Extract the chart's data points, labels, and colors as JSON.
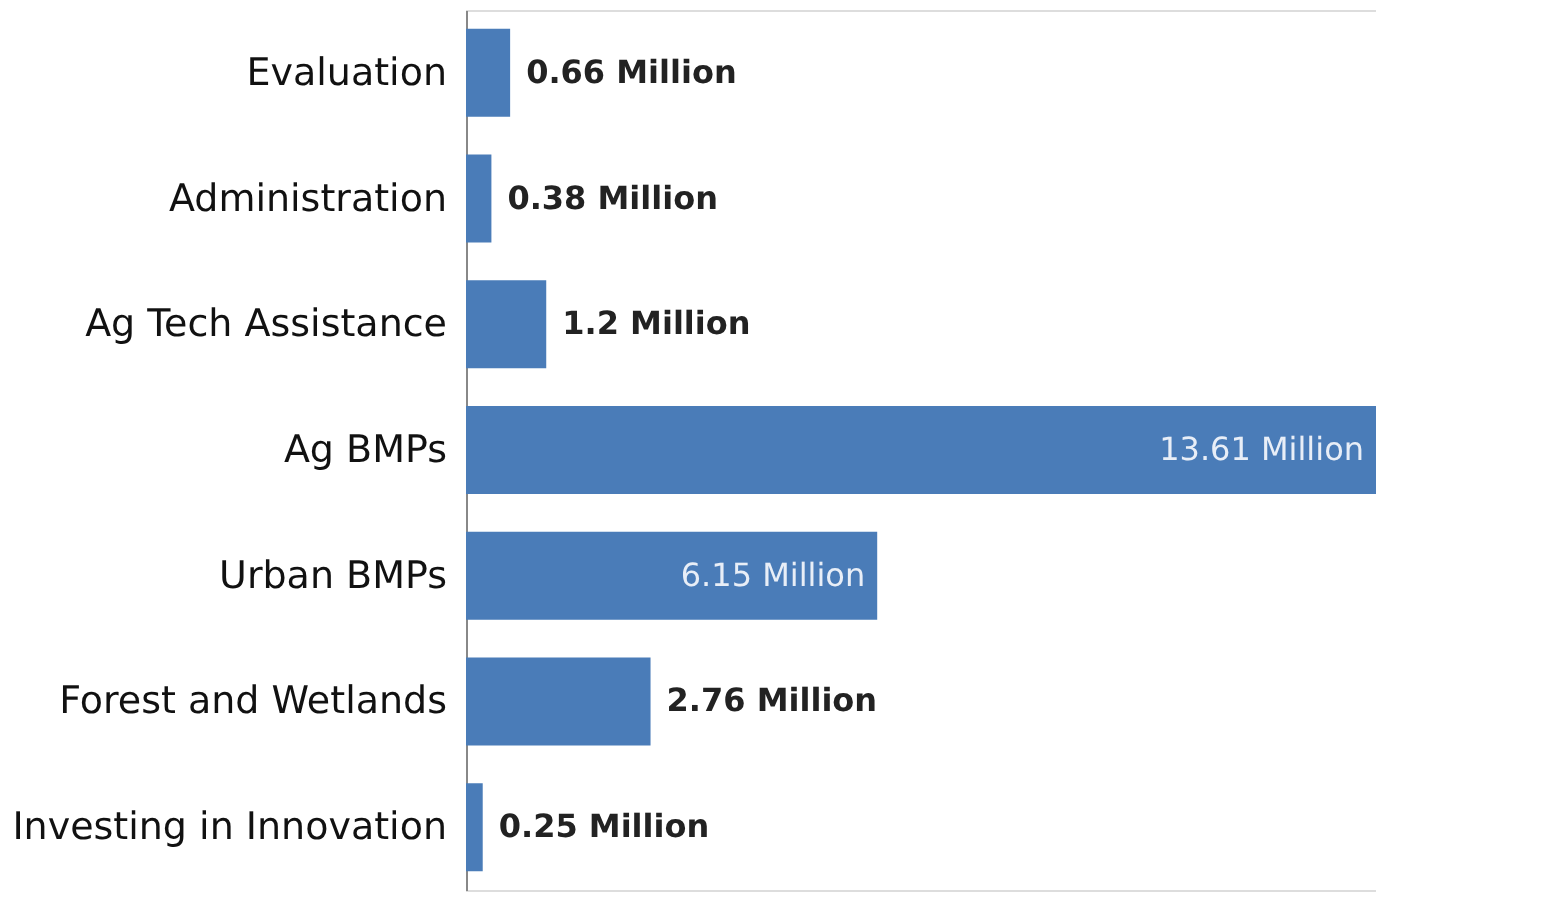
{
  "chart_data": {
    "type": "bar",
    "orientation": "horizontal",
    "categories": [
      "Evaluation",
      "Administration",
      "Ag Tech Assistance",
      "Ag BMPs",
      "Urban BMPs",
      "Forest and Wetlands",
      "Investing in Innovation"
    ],
    "values": [
      0.66,
      0.38,
      1.2,
      13.61,
      6.15,
      2.76,
      0.25
    ],
    "value_labels": [
      "0.66 Million",
      "0.38 Million",
      "1.2 Million",
      "13.61 Million",
      "6.15 Million",
      "2.76 Million",
      "0.25 Million"
    ],
    "color": "#4a7cb8",
    "xlim": [
      0,
      13.61
    ]
  }
}
